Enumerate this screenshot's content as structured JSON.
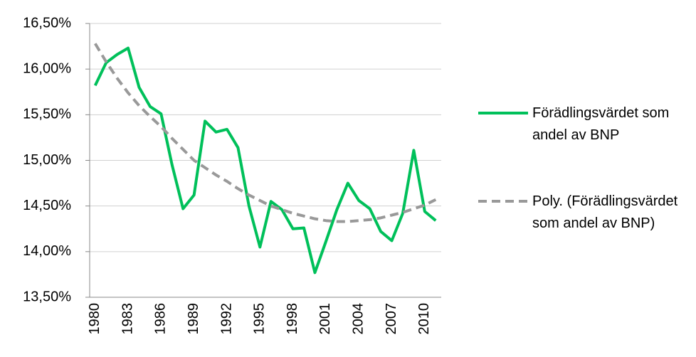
{
  "chart_data": {
    "type": "line",
    "categories": [
      "1980",
      null,
      null,
      "1983",
      null,
      null,
      "1986",
      null,
      null,
      "1989",
      null,
      null,
      "1992",
      null,
      null,
      "1995",
      null,
      null,
      "1998",
      null,
      null,
      "2001",
      null,
      null,
      "2004",
      null,
      null,
      "2007",
      null,
      null,
      "2010",
      null
    ],
    "series": [
      {
        "name": "Förädlingsvärdet som andel av BNP",
        "color": "#00c05a",
        "dash": false,
        "values": [
          15.82,
          16.07,
          16.16,
          16.23,
          15.8,
          15.59,
          15.51,
          14.95,
          14.47,
          14.62,
          15.43,
          15.31,
          15.34,
          15.14,
          14.5,
          14.05,
          14.55,
          14.46,
          14.25,
          14.26,
          13.77,
          14.11,
          14.46,
          14.75,
          14.56,
          14.47,
          14.22,
          14.12,
          14.42,
          15.11,
          14.44,
          14.34
        ]
      },
      {
        "name": "Poly. (Förädlingsvärdet som andel av BNP)",
        "color": "#999999",
        "dash": true,
        "values": [
          16.28,
          16.08,
          15.9,
          15.74,
          15.6,
          15.48,
          15.37,
          15.24,
          15.12,
          15.0,
          14.92,
          14.84,
          14.77,
          14.69,
          14.62,
          14.56,
          14.5,
          14.46,
          14.42,
          14.39,
          14.36,
          14.34,
          14.33,
          14.33,
          14.34,
          14.35,
          14.37,
          14.4,
          14.43,
          14.47,
          14.51,
          14.57
        ]
      }
    ],
    "ylim": [
      13.5,
      16.5
    ],
    "yticks": [
      {
        "value": 13.5,
        "label": "13,50%"
      },
      {
        "value": 14,
        "label": "14,00%"
      },
      {
        "value": 14.5,
        "label": "14,50%"
      },
      {
        "value": 15,
        "label": "15,00%"
      },
      {
        "value": 15.5,
        "label": "15,50%"
      },
      {
        "value": 16,
        "label": "16,00%"
      },
      {
        "value": 16.5,
        "label": "16,50%"
      }
    ],
    "grid": true
  }
}
